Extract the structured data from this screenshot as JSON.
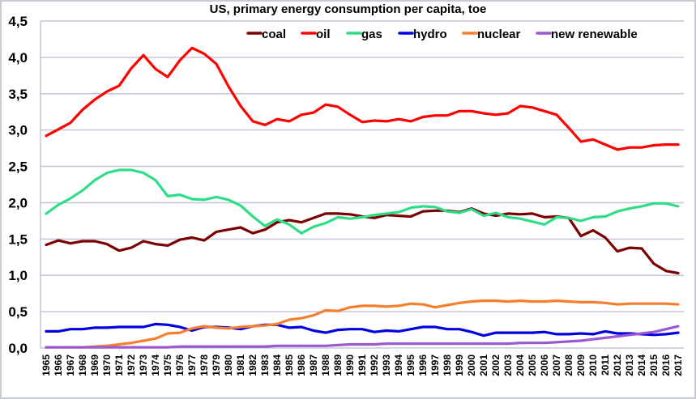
{
  "chart_data": {
    "type": "line",
    "title": "US, primary energy consumption per capita, toe",
    "xlabel": "",
    "ylabel": "",
    "ylim": [
      0,
      4.5
    ],
    "yticks": [
      "0,0",
      "0,5",
      "1,0",
      "1,5",
      "2,0",
      "2,5",
      "3,0",
      "3,5",
      "4,0",
      "4,5"
    ],
    "grid": true,
    "legend_position": "top-right",
    "x": [
      1965,
      1966,
      1967,
      1968,
      1969,
      1970,
      1971,
      1972,
      1973,
      1974,
      1975,
      1976,
      1977,
      1978,
      1979,
      1980,
      1981,
      1982,
      1983,
      1984,
      1985,
      1986,
      1987,
      1988,
      1989,
      1990,
      1991,
      1992,
      1993,
      1994,
      1995,
      1996,
      1997,
      1998,
      1999,
      2000,
      2001,
      2002,
      2003,
      2004,
      2005,
      2006,
      2007,
      2008,
      2009,
      2010,
      2011,
      2012,
      2013,
      2014,
      2015,
      2016,
      2017
    ],
    "series": [
      {
        "name": "coal",
        "color": "#7b0000",
        "values": [
          1.42,
          1.48,
          1.44,
          1.47,
          1.47,
          1.43,
          1.34,
          1.38,
          1.47,
          1.43,
          1.41,
          1.49,
          1.52,
          1.48,
          1.6,
          1.63,
          1.66,
          1.58,
          1.63,
          1.73,
          1.76,
          1.73,
          1.79,
          1.85,
          1.85,
          1.84,
          1.81,
          1.79,
          1.83,
          1.82,
          1.81,
          1.88,
          1.89,
          1.89,
          1.87,
          1.92,
          1.85,
          1.82,
          1.85,
          1.84,
          1.85,
          1.8,
          1.81,
          1.79,
          1.54,
          1.62,
          1.52,
          1.33,
          1.38,
          1.37,
          1.16,
          1.06,
          1.03
        ]
      },
      {
        "name": "oil",
        "color": "#ff0000",
        "values": [
          2.92,
          3.01,
          3.1,
          3.28,
          3.42,
          3.53,
          3.61,
          3.85,
          4.03,
          3.84,
          3.73,
          3.96,
          4.13,
          4.05,
          3.91,
          3.6,
          3.33,
          3.12,
          3.07,
          3.15,
          3.12,
          3.21,
          3.24,
          3.35,
          3.32,
          3.21,
          3.11,
          3.13,
          3.12,
          3.15,
          3.12,
          3.18,
          3.2,
          3.2,
          3.26,
          3.26,
          3.23,
          3.21,
          3.23,
          3.33,
          3.31,
          3.26,
          3.21,
          3.03,
          2.84,
          2.87,
          2.8,
          2.73,
          2.76,
          2.76,
          2.79,
          2.8,
          2.8
        ]
      },
      {
        "name": "gas",
        "color": "#2ddd88",
        "values": [
          1.85,
          1.97,
          2.06,
          2.17,
          2.31,
          2.41,
          2.45,
          2.45,
          2.41,
          2.31,
          2.09,
          2.11,
          2.05,
          2.04,
          2.08,
          2.04,
          1.96,
          1.81,
          1.68,
          1.77,
          1.7,
          1.58,
          1.67,
          1.72,
          1.8,
          1.78,
          1.8,
          1.83,
          1.85,
          1.87,
          1.93,
          1.95,
          1.94,
          1.88,
          1.86,
          1.91,
          1.82,
          1.86,
          1.8,
          1.78,
          1.74,
          1.7,
          1.8,
          1.79,
          1.75,
          1.8,
          1.81,
          1.88,
          1.92,
          1.95,
          1.99,
          1.99,
          1.95
        ]
      },
      {
        "name": "hydro",
        "color": "#0000e0",
        "values": [
          0.23,
          0.23,
          0.26,
          0.26,
          0.28,
          0.28,
          0.29,
          0.29,
          0.29,
          0.33,
          0.32,
          0.29,
          0.24,
          0.29,
          0.29,
          0.28,
          0.26,
          0.3,
          0.32,
          0.32,
          0.28,
          0.29,
          0.24,
          0.21,
          0.25,
          0.26,
          0.26,
          0.22,
          0.24,
          0.23,
          0.26,
          0.29,
          0.29,
          0.26,
          0.26,
          0.22,
          0.17,
          0.21,
          0.21,
          0.21,
          0.21,
          0.22,
          0.19,
          0.19,
          0.2,
          0.19,
          0.23,
          0.2,
          0.2,
          0.19,
          0.18,
          0.19,
          0.21
        ]
      },
      {
        "name": "nuclear",
        "color": "#f97f30",
        "values": [
          0.01,
          0.01,
          0.01,
          0.01,
          0.02,
          0.03,
          0.05,
          0.07,
          0.1,
          0.13,
          0.2,
          0.21,
          0.27,
          0.3,
          0.28,
          0.27,
          0.29,
          0.3,
          0.31,
          0.33,
          0.39,
          0.41,
          0.45,
          0.52,
          0.51,
          0.56,
          0.58,
          0.58,
          0.57,
          0.58,
          0.61,
          0.6,
          0.56,
          0.59,
          0.62,
          0.64,
          0.65,
          0.65,
          0.64,
          0.65,
          0.64,
          0.64,
          0.65,
          0.64,
          0.63,
          0.63,
          0.62,
          0.6,
          0.61,
          0.61,
          0.61,
          0.61,
          0.6
        ]
      },
      {
        "name": "new renewable",
        "color": "#9b59d0",
        "values": [
          0.01,
          0.01,
          0.01,
          0.01,
          0.01,
          0.01,
          0.01,
          0.01,
          0.01,
          0.01,
          0.01,
          0.02,
          0.02,
          0.02,
          0.02,
          0.02,
          0.02,
          0.02,
          0.02,
          0.03,
          0.03,
          0.03,
          0.03,
          0.03,
          0.04,
          0.05,
          0.05,
          0.05,
          0.06,
          0.06,
          0.06,
          0.06,
          0.06,
          0.06,
          0.06,
          0.06,
          0.06,
          0.06,
          0.06,
          0.07,
          0.07,
          0.07,
          0.08,
          0.09,
          0.1,
          0.12,
          0.14,
          0.16,
          0.18,
          0.2,
          0.22,
          0.26,
          0.3
        ]
      }
    ]
  }
}
